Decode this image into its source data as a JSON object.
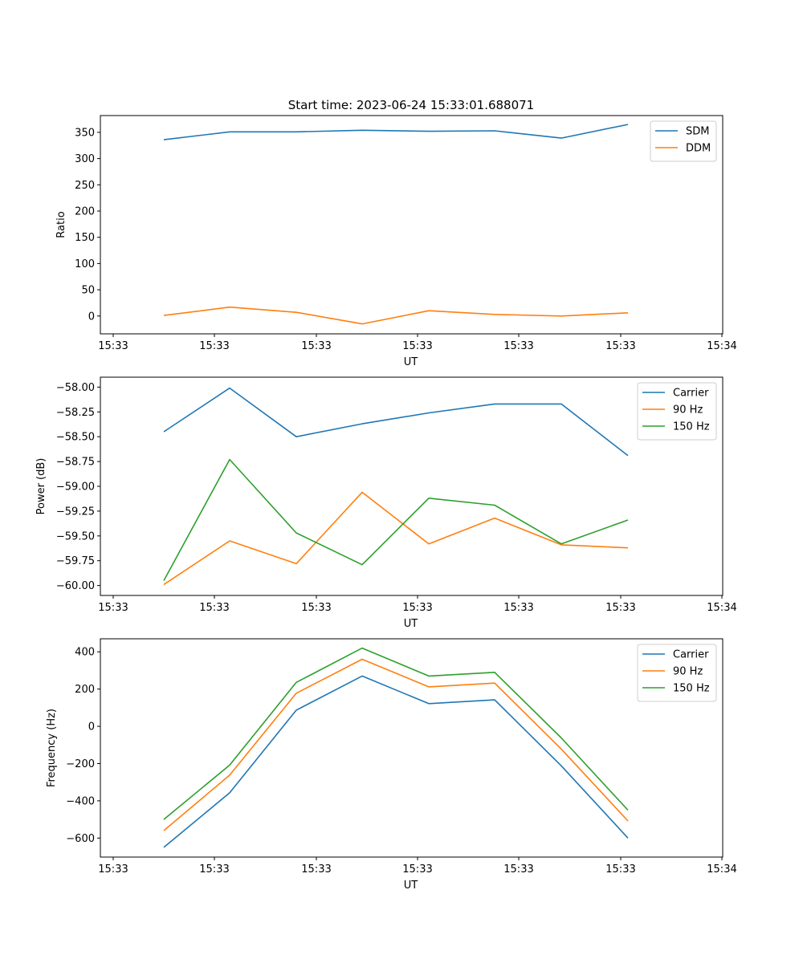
{
  "figure_title": "Start time: 2023-06-24 15:33:01.688071",
  "colors": {
    "blue": "#1f77b4",
    "orange": "#ff7f0e",
    "green": "#2ca02c"
  },
  "chart_data": [
    {
      "type": "line",
      "title": "Start time: 2023-06-24 15:33:01.688071",
      "xlabel": "UT",
      "ylabel": "Ratio",
      "x_tick_labels": [
        "15:33",
        "15:33",
        "15:33",
        "15:33",
        "15:33",
        "15:33",
        "15:34"
      ],
      "y_ticks": [
        0,
        50,
        100,
        150,
        200,
        250,
        300,
        350
      ],
      "y_tick_labels": [
        "0",
        "50",
        "100",
        "150",
        "200",
        "250",
        "300",
        "350"
      ],
      "ylim": [
        -34,
        382
      ],
      "legend_position": "top-right",
      "grid": false,
      "series": [
        {
          "name": "SDM",
          "color": "#1f77b4",
          "values": [
            336,
            351,
            351,
            354,
            352,
            353,
            339,
            365
          ]
        },
        {
          "name": "DDM",
          "color": "#ff7f0e",
          "values": [
            1,
            17,
            7,
            -15,
            10,
            3,
            0,
            6
          ]
        }
      ]
    },
    {
      "type": "line",
      "xlabel": "UT",
      "ylabel": "Power (dB)",
      "x_tick_labels": [
        "15:33",
        "15:33",
        "15:33",
        "15:33",
        "15:33",
        "15:33",
        "15:34"
      ],
      "y_ticks": [
        -60.0,
        -59.75,
        -59.5,
        -59.25,
        -59.0,
        -58.75,
        -58.5,
        -58.25,
        -58.0
      ],
      "y_tick_labels": [
        "−60.00",
        "−59.75",
        "−59.50",
        "−59.25",
        "−59.00",
        "−58.75",
        "−58.50",
        "−58.25",
        "−58.00"
      ],
      "ylim": [
        -60.1,
        -57.9
      ],
      "legend_position": "top-right",
      "grid": false,
      "series": [
        {
          "name": "Carrier",
          "color": "#1f77b4",
          "values": [
            -58.45,
            -58.01,
            -58.5,
            -58.37,
            -58.26,
            -58.17,
            -58.17,
            -58.69
          ]
        },
        {
          "name": "90 Hz",
          "color": "#ff7f0e",
          "values": [
            -59.99,
            -59.55,
            -59.78,
            -59.06,
            -59.58,
            -59.32,
            -59.59,
            -59.62
          ]
        },
        {
          "name": "150 Hz",
          "color": "#2ca02c",
          "values": [
            -59.95,
            -58.73,
            -59.47,
            -59.79,
            -59.12,
            -59.19,
            -59.58,
            -59.34
          ]
        }
      ]
    },
    {
      "type": "line",
      "xlabel": "UT",
      "ylabel": "Frequency (Hz)",
      "x_tick_labels": [
        "15:33",
        "15:33",
        "15:33",
        "15:33",
        "15:33",
        "15:33",
        "15:34"
      ],
      "y_ticks": [
        -600,
        -400,
        -200,
        0,
        200,
        400
      ],
      "y_tick_labels": [
        "−600",
        "−400",
        "−200",
        "0",
        "200",
        "400"
      ],
      "ylim": [
        -702,
        470
      ],
      "legend_position": "top-right",
      "grid": false,
      "series": [
        {
          "name": "Carrier",
          "color": "#1f77b4",
          "values": [
            -650,
            -357,
            87,
            270,
            122,
            142,
            -212,
            -600
          ]
        },
        {
          "name": "90 Hz",
          "color": "#ff7f0e",
          "values": [
            -560,
            -262,
            178,
            360,
            212,
            232,
            -122,
            -508
          ]
        },
        {
          "name": "150 Hz",
          "color": "#2ca02c",
          "values": [
            -500,
            -208,
            236,
            420,
            270,
            290,
            -62,
            -450
          ]
        }
      ]
    }
  ]
}
